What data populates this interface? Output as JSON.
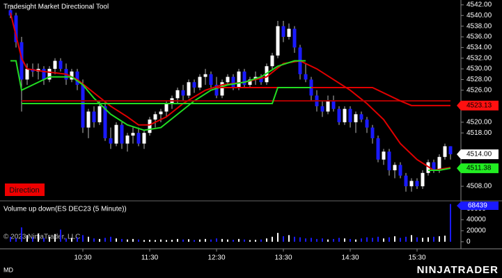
{
  "page": {
    "copyright": "© 2023 NinjaTrader, LLC",
    "footer_left": "MD",
    "logo": "NINJATRADER"
  },
  "chart_data": [
    {
      "type": "candlestick",
      "title": "Tradesight Market Directional Tool",
      "label": "Direction",
      "up_color": "#ffffff",
      "down_color": "#1a1aff",
      "wick_color": "#b8b8b8",
      "x": [
        "9:25",
        "9:30",
        "9:35",
        "9:40",
        "9:45",
        "9:50",
        "9:55",
        "10:00",
        "10:05",
        "10:10",
        "10:15",
        "10:20",
        "10:25",
        "10:30",
        "10:35",
        "10:40",
        "10:45",
        "10:50",
        "10:55",
        "11:00",
        "11:05",
        "11:10",
        "11:15",
        "11:20",
        "11:25",
        "11:30",
        "11:35",
        "11:40",
        "11:45",
        "11:50",
        "11:55",
        "12:00",
        "12:05",
        "12:10",
        "12:15",
        "12:20",
        "12:25",
        "12:30",
        "12:35",
        "12:40",
        "12:45",
        "12:50",
        "12:55",
        "13:00",
        "13:05",
        "13:10",
        "13:15",
        "13:20",
        "13:25",
        "13:30",
        "13:35",
        "13:40",
        "13:45",
        "13:50",
        "13:55",
        "14:00",
        "14:05",
        "14:10",
        "14:15",
        "14:20",
        "14:25",
        "14:30",
        "14:35",
        "14:40",
        "14:45",
        "14:50",
        "14:55",
        "15:00",
        "15:05",
        "15:10",
        "15:15",
        "15:20",
        "15:25",
        "15:30",
        "15:35",
        "15:40",
        "15:45",
        "15:50",
        "15:55",
        "16:00"
      ],
      "open": [
        4541,
        4540,
        4535,
        4528,
        4530,
        4529.5,
        4530,
        4528,
        4530,
        4531.5,
        4530,
        4528,
        4529.5,
        4527,
        4519,
        4522,
        4520,
        4523,
        4517,
        4516,
        4519.5,
        4516,
        4517.5,
        4518,
        4516,
        4518,
        4520.5,
        4521.5,
        4522,
        4523.5,
        4524.5,
        4526,
        4525,
        4527.5,
        4526.5,
        4528.5,
        4529,
        4527,
        4525,
        4527.5,
        4528.5,
        4526.5,
        4529.5,
        4527,
        4528,
        4528.5,
        4527.5,
        4530.5,
        4532.5,
        4538,
        4536,
        4537.5,
        4534,
        4529,
        4528,
        4525,
        4523,
        4522,
        4524,
        4522.5,
        4520,
        4522.5,
        4520,
        4521.5,
        4520.5,
        4519,
        4517,
        4513,
        4514.5,
        4511,
        4512,
        4510,
        4508,
        4509,
        4508,
        4510.5,
        4512.5,
        4511,
        4513.5,
        4515.5
      ],
      "high": [
        4542,
        4540.5,
        4536,
        4531,
        4531,
        4531,
        4530.5,
        4530.5,
        4532,
        4532,
        4531,
        4530,
        4530,
        4528,
        4522.5,
        4523,
        4524,
        4524,
        4519,
        4520,
        4520,
        4518,
        4519,
        4519,
        4518.5,
        4521,
        4522,
        4522.5,
        4524,
        4525,
        4526.5,
        4527,
        4528,
        4528,
        4529,
        4530,
        4529.5,
        4528.5,
        4528,
        4529,
        4529,
        4530,
        4530,
        4528.5,
        4529.5,
        4529,
        4531,
        4533,
        4539,
        4539,
        4538.5,
        4538,
        4534.5,
        4531,
        4528.5,
        4526,
        4524,
        4525,
        4525,
        4523,
        4523,
        4523,
        4522,
        4522,
        4521,
        4519.5,
        4517.5,
        4515,
        4515,
        4512.5,
        4512.5,
        4510.5,
        4509.5,
        4509.5,
        4511,
        4513,
        4513,
        4514,
        4516,
        4515.5
      ],
      "low": [
        4539.5,
        4534,
        4522,
        4527,
        4528.5,
        4528,
        4527,
        4527.5,
        4529,
        4529.5,
        4527,
        4527.5,
        4526,
        4518,
        4517,
        4519,
        4519.5,
        4516.5,
        4515,
        4515.5,
        4515,
        4514.5,
        4516,
        4515.5,
        4515,
        4517.5,
        4519,
        4520,
        4521,
        4522.5,
        4523.5,
        4524,
        4524.5,
        4525.5,
        4526,
        4527,
        4526.5,
        4524.5,
        4524.5,
        4527,
        4526,
        4526,
        4526.5,
        4526.5,
        4527,
        4527,
        4527,
        4530,
        4532,
        4535,
        4535.5,
        4533,
        4528,
        4527.5,
        4524,
        4522,
        4521,
        4521.5,
        4522,
        4519.5,
        4519.5,
        4519,
        4518,
        4520,
        4518,
        4516,
        4512.5,
        4512,
        4510,
        4509.5,
        4509.5,
        4507,
        4507,
        4507.5,
        4507.5,
        4510,
        4510.5,
        4510.5,
        4513,
        4513
      ],
      "close": [
        4540,
        4535,
        4528,
        4530,
        4529.5,
        4530,
        4528,
        4530,
        4531.5,
        4530,
        4528,
        4529.5,
        4527,
        4519,
        4522,
        4520,
        4523,
        4517,
        4516,
        4519.5,
        4516,
        4517.5,
        4518,
        4516,
        4518,
        4520.5,
        4521.5,
        4522,
        4523.5,
        4524.5,
        4526,
        4525,
        4527.5,
        4526.5,
        4528.5,
        4529,
        4527,
        4525,
        4527.5,
        4528.5,
        4526.5,
        4529.5,
        4527,
        4528,
        4528.5,
        4527.5,
        4530.5,
        4532.5,
        4538,
        4536,
        4537.5,
        4534,
        4529,
        4528,
        4525,
        4523,
        4522,
        4524,
        4522.5,
        4520,
        4522.5,
        4520,
        4521.5,
        4520.5,
        4519,
        4517,
        4513,
        4514.5,
        4511,
        4512,
        4510,
        4508,
        4509,
        4508,
        4510.5,
        4512.5,
        4511,
        4513.5,
        4515.5,
        4514
      ],
      "overlays": [
        {
          "color": "#e00000",
          "x": [
            "9:25",
            "9:35",
            "9:40",
            "9:55",
            "10:15",
            "10:25",
            "10:40",
            "10:55",
            "11:10",
            "11:20",
            "11:30",
            "11:45",
            "12:00",
            "12:20",
            "12:35",
            "12:55",
            "13:15",
            "13:30",
            "13:45",
            "14:00",
            "14:15",
            "14:30",
            "14:45",
            "15:00",
            "15:15",
            "15:30",
            "15:45",
            "16:00"
          ],
          "values": [
            4540.5,
            4532,
            4530,
            4529.5,
            4529,
            4528,
            4525.5,
            4523,
            4521,
            4519.5,
            4519.5,
            4521,
            4523.5,
            4526,
            4527,
            4527.5,
            4528.5,
            4531,
            4531.5,
            4530,
            4528,
            4526,
            4523.5,
            4520.5,
            4516,
            4513,
            4511,
            4511.5
          ]
        },
        {
          "color": "#22dd22",
          "x": [
            "9:25",
            "9:30",
            "9:35",
            "9:45",
            "10:00",
            "10:20",
            "10:30",
            "10:40",
            "10:55",
            "11:10",
            "11:25",
            "11:40",
            "11:55",
            "12:10",
            "12:25",
            "12:40",
            "12:55",
            "13:10",
            "13:25",
            "13:40",
            "13:50"
          ],
          "values": [
            4531.5,
            4531.5,
            4526,
            4527,
            4528.5,
            4528.5,
            4527,
            4524.5,
            4521.5,
            4519.5,
            4518.5,
            4519,
            4521.5,
            4524,
            4526,
            4527,
            4527.5,
            4528.5,
            4530.5,
            4531.5,
            4531.5
          ]
        },
        {
          "color": "#22dd22",
          "x": [
            "15:40",
            "15:50",
            "16:00"
          ],
          "values": [
            4511,
            4511,
            4511.38
          ]
        },
        {
          "color": "#b00000",
          "x": [
            "9:35",
            "16:00"
          ],
          "values": [
            4524,
            4524
          ]
        },
        {
          "color": "#e00000",
          "x": [
            "12:30",
            "14:50",
            "15:15",
            "15:25",
            "16:00"
          ],
          "values": [
            4526.5,
            4526.5,
            4524,
            4523.13,
            4523.13
          ]
        },
        {
          "color": "#22dd22",
          "x": [
            "9:35",
            "13:20",
            "13:25",
            "13:55"
          ],
          "values": [
            4523.5,
            4523.5,
            4526.5,
            4526.5
          ]
        }
      ],
      "flags": [
        {
          "value": 4523.13,
          "color": "#ff1010",
          "text_color": "#000000"
        },
        {
          "value": 4514,
          "label": "4514.00",
          "color": "#ffffff",
          "text_color": "#000000"
        },
        {
          "value": 4511.38,
          "color": "#22ee22",
          "text_color": "#000000"
        }
      ],
      "ylim": [
        4505.4,
        4542.9
      ],
      "yticks": [
        {
          "value": 4508,
          "label": "4508.00"
        },
        {
          "value": 4518,
          "label": "4518.00"
        },
        {
          "value": 4520,
          "label": "4520.00"
        },
        {
          "value": 4526,
          "label": "4526.00"
        },
        {
          "value": 4528,
          "label": "4528.00"
        },
        {
          "value": 4530,
          "label": "4530.00"
        },
        {
          "value": 4532,
          "label": "4532.00"
        },
        {
          "value": 4534,
          "label": "4534.00"
        },
        {
          "value": 4536,
          "label": "4536.00"
        },
        {
          "value": 4538,
          "label": "4538.00"
        },
        {
          "value": 4540,
          "label": "4540.00"
        },
        {
          "value": 4542,
          "label": "4542.00"
        }
      ]
    },
    {
      "type": "bar",
      "title": "Volume up down(ES DEC23 (5 Minute))",
      "flag_color": "#1a1aff",
      "values": [
        9000,
        6000,
        26000,
        12000,
        8000,
        15000,
        7000,
        9000,
        14000,
        22000,
        6000,
        7000,
        8000,
        12000,
        9000,
        6000,
        5000,
        7000,
        9000,
        6000,
        5000,
        4000,
        5000,
        4000,
        3000,
        3500,
        3000,
        4000,
        3000,
        3500,
        5000,
        4000,
        4500,
        3000,
        4000,
        5000,
        4000,
        6000,
        5000,
        4000,
        3500,
        5000,
        4000,
        3000,
        3500,
        4000,
        6000,
        9000,
        16000,
        10000,
        12000,
        9000,
        8000,
        6000,
        7000,
        5000,
        6000,
        4000,
        5000,
        7000,
        6000,
        5000,
        4000,
        6000,
        8000,
        7000,
        9000,
        6000,
        8000,
        10000,
        7000,
        9000,
        12000,
        8000,
        7000,
        8000,
        9000,
        10000,
        11000,
        68439
      ],
      "ylim": [
        -10300,
        72900
      ],
      "yticks": [
        0,
        20000,
        40000,
        60000
      ],
      "xticks": [
        "10:30",
        "11:30",
        "12:30",
        "13:30",
        "14:30",
        "15:30"
      ]
    }
  ]
}
